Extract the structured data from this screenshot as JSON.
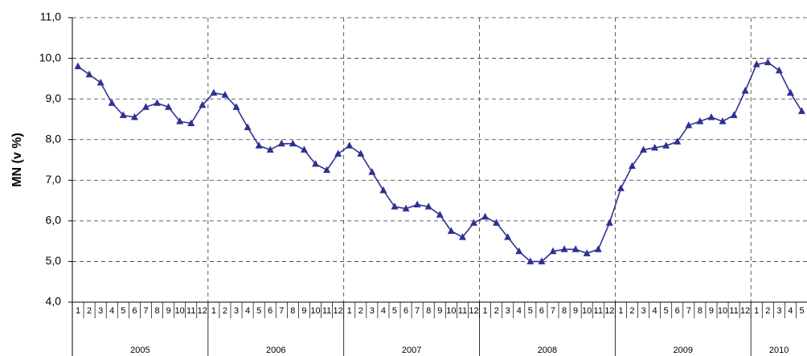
{
  "chart_data": {
    "type": "line",
    "y_label": "MN (v %)",
    "categories": [
      "1",
      "2",
      "3",
      "4",
      "5",
      "6",
      "7",
      "8",
      "9",
      "10",
      "11",
      "12",
      "1",
      "2",
      "3",
      "4",
      "5",
      "6",
      "7",
      "8",
      "9",
      "10",
      "11",
      "12",
      "1",
      "2",
      "3",
      "4",
      "5",
      "6",
      "7",
      "8",
      "9",
      "10",
      "11",
      "12",
      "1",
      "2",
      "3",
      "4",
      "5",
      "6",
      "7",
      "8",
      "9",
      "10",
      "11",
      "12",
      "1",
      "2",
      "3",
      "4",
      "5",
      "6",
      "7",
      "8",
      "9",
      "10",
      "11",
      "12",
      "1",
      "2",
      "3",
      "4",
      "5"
    ],
    "year_groups": [
      "2005",
      "2006",
      "2007",
      "2008",
      "2009",
      "2010"
    ],
    "series": [
      {
        "name": "MN",
        "color": "#2e3192",
        "values": [
          9.8,
          9.6,
          9.4,
          8.9,
          8.6,
          8.55,
          8.8,
          8.9,
          8.8,
          8.45,
          8.4,
          8.85,
          9.15,
          9.1,
          8.8,
          8.3,
          7.85,
          7.75,
          7.9,
          7.9,
          7.75,
          7.4,
          7.25,
          7.65,
          7.85,
          7.65,
          7.2,
          6.75,
          6.35,
          6.3,
          6.4,
          6.35,
          6.15,
          5.75,
          5.6,
          5.95,
          6.1,
          5.95,
          5.6,
          5.25,
          5.0,
          5.0,
          5.25,
          5.3,
          5.3,
          5.2,
          5.3,
          5.95,
          6.8,
          7.35,
          7.75,
          7.8,
          7.85,
          7.95,
          8.35,
          8.45,
          8.55,
          8.45,
          8.6,
          9.2,
          9.85,
          9.9,
          9.7,
          9.15,
          8.7
        ]
      }
    ],
    "ylim": [
      4,
      11
    ],
    "yticks": [
      {
        "value": 4,
        "label": "4,0"
      },
      {
        "value": 5,
        "label": "5,0"
      },
      {
        "value": 6,
        "label": "6,0"
      },
      {
        "value": 7,
        "label": "7,0"
      },
      {
        "value": 8,
        "label": "8,0"
      },
      {
        "value": 9,
        "label": "9,0"
      },
      {
        "value": 10,
        "label": "10,0"
      },
      {
        "value": 11,
        "label": "11,0"
      }
    ],
    "grid": true
  }
}
